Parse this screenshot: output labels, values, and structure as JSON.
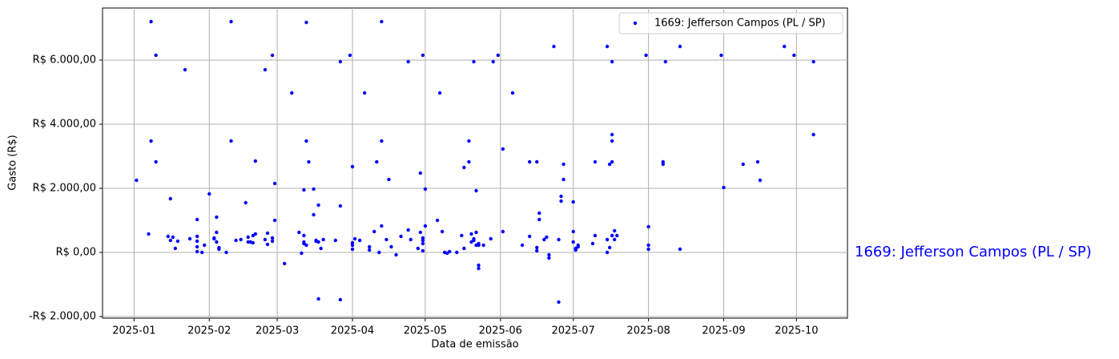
{
  "chart_data": {
    "type": "scatter",
    "xlabel": "Data de emissão",
    "ylabel": "Gasto (R$)",
    "annotation": "1669: Jefferson Campos (PL / SP)",
    "xlim": [
      "2024-12-19",
      "2025-10-22"
    ],
    "ylim": [
      -2050,
      7625
    ],
    "xticks": [
      {
        "value": "2025-01-01",
        "label": "2025-01"
      },
      {
        "value": "2025-02-01",
        "label": "2025-02"
      },
      {
        "value": "2025-03-01",
        "label": "2025-03"
      },
      {
        "value": "2025-04-01",
        "label": "2025-04"
      },
      {
        "value": "2025-05-01",
        "label": "2025-05"
      },
      {
        "value": "2025-06-01",
        "label": "2025-06"
      },
      {
        "value": "2025-07-01",
        "label": "2025-07"
      },
      {
        "value": "2025-08-01",
        "label": "2025-08"
      },
      {
        "value": "2025-09-01",
        "label": "2025-09"
      },
      {
        "value": "2025-10-01",
        "label": "2025-10"
      }
    ],
    "yticks": [
      {
        "value": -2000,
        "label": "-R$ 2.000,00"
      },
      {
        "value": 0,
        "label": "R$ 0,00"
      },
      {
        "value": 2000,
        "label": "R$ 2.000,00"
      },
      {
        "value": 4000,
        "label": "R$ 4.000,00"
      },
      {
        "value": 6000,
        "label": "R$ 6.000,00"
      }
    ],
    "grid": true,
    "legend": "upper right",
    "series": [
      {
        "name": "1669: Jefferson Campos (PL / SP)",
        "color": "#0000ff",
        "x": [
          "2025-01-02",
          "2025-01-07",
          "2025-01-08",
          "2025-01-08",
          "2025-01-10",
          "2025-01-10",
          "2025-01-15",
          "2025-01-16",
          "2025-01-16",
          "2025-01-17",
          "2025-01-18",
          "2025-01-19",
          "2025-01-22",
          "2025-01-24",
          "2025-01-27",
          "2025-01-27",
          "2025-01-27",
          "2025-01-27",
          "2025-01-27",
          "2025-01-29",
          "2025-01-30",
          "2025-02-01",
          "2025-02-03",
          "2025-02-03",
          "2025-02-04",
          "2025-02-04",
          "2025-02-04",
          "2025-02-05",
          "2025-02-05",
          "2025-02-08",
          "2025-02-10",
          "2025-02-10",
          "2025-02-12",
          "2025-02-14",
          "2025-02-16",
          "2025-02-17",
          "2025-02-17",
          "2025-02-18",
          "2025-02-19",
          "2025-02-19",
          "2025-02-20",
          "2025-02-20",
          "2025-02-24",
          "2025-02-24",
          "2025-02-25",
          "2025-02-25",
          "2025-02-27",
          "2025-02-27",
          "2025-02-27",
          "2025-02-28",
          "2025-02-28",
          "2025-03-04",
          "2025-03-07",
          "2025-03-10",
          "2025-03-11",
          "2025-03-12",
          "2025-03-12",
          "2025-03-12",
          "2025-03-12",
          "2025-03-13",
          "2025-03-13",
          "2025-03-13",
          "2025-03-14",
          "2025-03-16",
          "2025-03-16",
          "2025-03-17",
          "2025-03-17",
          "2025-03-18",
          "2025-03-18",
          "2025-03-18",
          "2025-03-19",
          "2025-03-20",
          "2025-03-25",
          "2025-03-27",
          "2025-03-27",
          "2025-03-27",
          "2025-03-31",
          "2025-04-01",
          "2025-04-01",
          "2025-04-01",
          "2025-04-01",
          "2025-04-02",
          "2025-04-04",
          "2025-04-06",
          "2025-04-08",
          "2025-04-08",
          "2025-04-10",
          "2025-04-11",
          "2025-04-12",
          "2025-04-13",
          "2025-04-13",
          "2025-04-13",
          "2025-04-15",
          "2025-04-16",
          "2025-04-17",
          "2025-04-19",
          "2025-04-21",
          "2025-04-24",
          "2025-04-24",
          "2025-04-25",
          "2025-04-28",
          "2025-04-29",
          "2025-04-29",
          "2025-04-30",
          "2025-04-30",
          "2025-04-30",
          "2025-04-30",
          "2025-04-30",
          "2025-05-01",
          "2025-05-01",
          "2025-05-06",
          "2025-05-07",
          "2025-05-08",
          "2025-05-09",
          "2025-05-10",
          "2025-05-11",
          "2025-05-14",
          "2025-05-16",
          "2025-05-17",
          "2025-05-17",
          "2025-05-19",
          "2025-05-19",
          "2025-05-20",
          "2025-05-20",
          "2025-05-21",
          "2025-05-21",
          "2025-05-21",
          "2025-05-22",
          "2025-05-22",
          "2025-05-22",
          "2025-05-23",
          "2025-05-23",
          "2025-05-23",
          "2025-05-23",
          "2025-05-25",
          "2025-05-28",
          "2025-05-29",
          "2025-05-31",
          "2025-06-02",
          "2025-06-02",
          "2025-06-06",
          "2025-06-10",
          "2025-06-13",
          "2025-06-13",
          "2025-06-16",
          "2025-06-16",
          "2025-06-16",
          "2025-06-17",
          "2025-06-17",
          "2025-06-19",
          "2025-06-20",
          "2025-06-21",
          "2025-06-21",
          "2025-06-23",
          "2025-06-25",
          "2025-06-25",
          "2025-06-26",
          "2025-06-26",
          "2025-06-27",
          "2025-06-27",
          "2025-07-01",
          "2025-07-01",
          "2025-07-01",
          "2025-07-02",
          "2025-07-02",
          "2025-07-02",
          "2025-07-03",
          "2025-07-03",
          "2025-07-09",
          "2025-07-10",
          "2025-07-10",
          "2025-07-15",
          "2025-07-15",
          "2025-07-15",
          "2025-07-16",
          "2025-07-16",
          "2025-07-17",
          "2025-07-17",
          "2025-07-17",
          "2025-07-17",
          "2025-07-17",
          "2025-07-18",
          "2025-07-18",
          "2025-07-19",
          "2025-07-31",
          "2025-08-01",
          "2025-08-01",
          "2025-08-01",
          "2025-08-07",
          "2025-08-07",
          "2025-08-08",
          "2025-08-14",
          "2025-08-14",
          "2025-08-31",
          "2025-09-01",
          "2025-09-09",
          "2025-09-15",
          "2025-09-16",
          "2025-09-26",
          "2025-09-30",
          "2025-10-08",
          "2025-10-08"
        ],
        "values": [
          2250,
          575,
          7200,
          3475,
          6150,
          2825,
          500,
          1675,
          375,
          475,
          125,
          350,
          5700,
          425,
          1025,
          500,
          350,
          175,
          25,
          0,
          225,
          1825,
          425,
          450,
          1100,
          325,
          625,
          150,
          100,
          0,
          7200,
          3475,
          375,
          400,
          1550,
          475,
          325,
          325,
          525,
          300,
          2850,
          575,
          400,
          5700,
          250,
          600,
          450,
          350,
          6150,
          1000,
          2150,
          -350,
          4975,
          625,
          -25,
          1950,
          275,
          525,
          325,
          225,
          7175,
          3475,
          2825,
          1175,
          1975,
          375,
          350,
          -1450,
          1475,
          325,
          125,
          400,
          375,
          5950,
          1450,
          -1475,
          6150,
          2675,
          100,
          300,
          225,
          425,
          375,
          4975,
          75,
          175,
          650,
          2825,
          0,
          825,
          7200,
          3475,
          400,
          2275,
          175,
          -75,
          500,
          5950,
          700,
          400,
          125,
          2475,
          625,
          450,
          275,
          375,
          50,
          6150,
          825,
          1975,
          1000,
          4975,
          650,
          0,
          -25,
          25,
          0,
          525,
          125,
          2650,
          3475,
          2825,
          325,
          575,
          5950,
          425,
          375,
          225,
          625,
          1925,
          275,
          -400,
          -500,
          225,
          225,
          425,
          5950,
          6150,
          3225,
          650,
          4975,
          225,
          500,
          2825,
          2825,
          50,
          150,
          1025,
          1225,
          400,
          475,
          -75,
          -175,
          6425,
          400,
          -1550,
          1750,
          1600,
          2750,
          2275,
          1575,
          650,
          325,
          100,
          125,
          75,
          225,
          175,
          275,
          525,
          2825,
          400,
          6425,
          0,
          150,
          2750,
          3675,
          3475,
          5950,
          2825,
          525,
          400,
          675,
          525,
          6150,
          800,
          100,
          225,
          2825,
          2750,
          5950,
          6425,
          100,
          6150,
          2025,
          2750,
          2825,
          2250,
          6425,
          6150,
          5950,
          3675
        ]
      }
    ]
  }
}
